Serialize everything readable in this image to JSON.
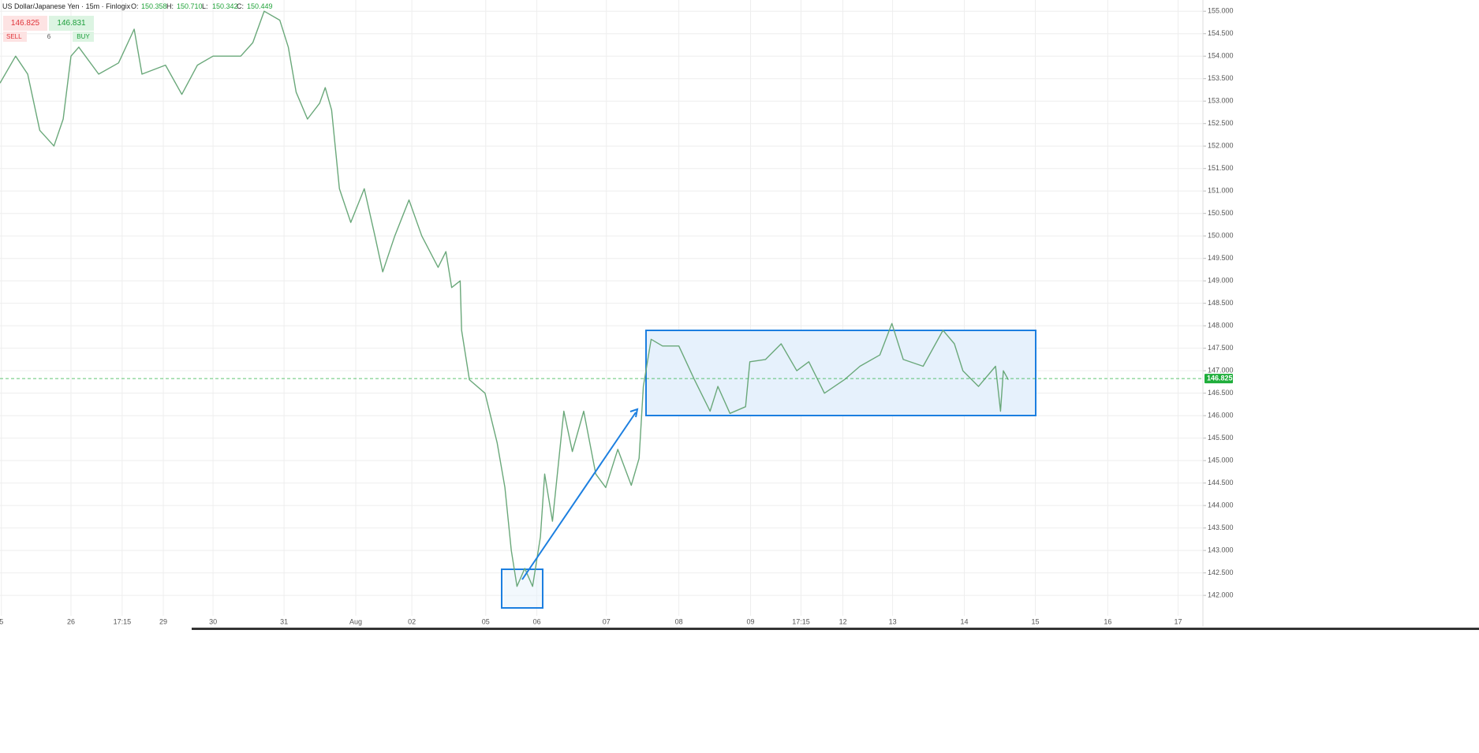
{
  "chart_data": {
    "type": "line",
    "title": "US Dollar/Japanese Yen · 15m · Finlogix",
    "ohlc": [
      {
        "label": "O:",
        "value": "150.358"
      },
      {
        "label": "H:",
        "value": "150.710"
      },
      {
        "label": "L:",
        "value": "150.342"
      },
      {
        "label": "C:",
        "value": "150.449"
      }
    ],
    "trade": {
      "sell_price": "146.825",
      "buy_price": "146.831",
      "sell_label": "SELL",
      "buy_label": "BUY",
      "spread": "6"
    },
    "last": {
      "value": 146.825,
      "label": "146.825",
      "color": "#1fae3b"
    },
    "grid": true,
    "xlim": [
      0,
      16.94
    ],
    "ylim": [
      141.3,
      155.25
    ],
    "xticks": [
      {
        "value": 0.02,
        "label": "5"
      },
      {
        "value": 1.0,
        "label": "26"
      },
      {
        "value": 1.72,
        "label": "17:15"
      },
      {
        "value": 2.3,
        "label": "29"
      },
      {
        "value": 3.0,
        "label": "30"
      },
      {
        "value": 4.0,
        "label": "31"
      },
      {
        "value": 5.01,
        "label": "Aug"
      },
      {
        "value": 5.8,
        "label": "02"
      },
      {
        "value": 6.84,
        "label": "05"
      },
      {
        "value": 7.56,
        "label": "06"
      },
      {
        "value": 8.54,
        "label": "07"
      },
      {
        "value": 9.56,
        "label": "08"
      },
      {
        "value": 10.57,
        "label": "09"
      },
      {
        "value": 11.28,
        "label": "17:15"
      },
      {
        "value": 11.87,
        "label": "12"
      },
      {
        "value": 12.57,
        "label": "13"
      },
      {
        "value": 13.58,
        "label": "14"
      },
      {
        "value": 14.58,
        "label": "15"
      },
      {
        "value": 15.6,
        "label": "16"
      },
      {
        "value": 16.59,
        "label": "17"
      }
    ],
    "yticks": [
      {
        "value": 142.0,
        "label": "142.000"
      },
      {
        "value": 142.5,
        "label": "142.500"
      },
      {
        "value": 143.0,
        "label": "143.000"
      },
      {
        "value": 143.5,
        "label": "143.500"
      },
      {
        "value": 144.0,
        "label": "144.000"
      },
      {
        "value": 144.5,
        "label": "144.500"
      },
      {
        "value": 145.0,
        "label": "145.000"
      },
      {
        "value": 145.5,
        "label": "145.500"
      },
      {
        "value": 146.0,
        "label": "146.000"
      },
      {
        "value": 146.5,
        "label": "146.500"
      },
      {
        "value": 147.0,
        "label": "147.000"
      },
      {
        "value": 147.5,
        "label": "147.500"
      },
      {
        "value": 148.0,
        "label": "148.000"
      },
      {
        "value": 148.5,
        "label": "148.500"
      },
      {
        "value": 149.0,
        "label": "149.000"
      },
      {
        "value": 149.5,
        "label": "149.500"
      },
      {
        "value": 150.0,
        "label": "150.000"
      },
      {
        "value": 150.5,
        "label": "150.500"
      },
      {
        "value": 151.0,
        "label": "151.000"
      },
      {
        "value": 151.5,
        "label": "151.500"
      },
      {
        "value": 152.0,
        "label": "152.000"
      },
      {
        "value": 152.5,
        "label": "152.500"
      },
      {
        "value": 153.0,
        "label": "153.000"
      },
      {
        "value": 153.5,
        "label": "153.500"
      },
      {
        "value": 154.0,
        "label": "154.000"
      },
      {
        "value": 154.5,
        "label": "154.500"
      },
      {
        "value": 155.0,
        "label": "155.000"
      }
    ],
    "x": [
      0,
      0.22,
      0.39,
      0.56,
      0.76,
      0.89,
      1.0,
      1.11,
      1.39,
      1.67,
      1.89,
      2.0,
      2.33,
      2.56,
      2.78,
      3.0,
      3.39,
      3.56,
      3.72,
      3.94,
      4.06,
      4.17,
      4.33,
      4.5,
      4.58,
      4.67,
      4.78,
      4.94,
      5.13,
      5.28,
      5.39,
      5.56,
      5.76,
      5.94,
      6.17,
      6.28,
      6.36,
      6.48,
      6.5,
      6.61,
      6.83,
      7.0,
      7.11,
      7.2,
      7.28,
      7.39,
      7.5,
      7.61,
      7.67,
      7.78,
      7.94,
      8.06,
      8.22,
      8.39,
      8.53,
      8.7,
      8.89,
      9.0,
      9.06,
      9.17,
      9.33,
      9.56,
      9.78,
      10.0,
      10.11,
      10.28,
      10.5,
      10.56,
      10.78,
      11.0,
      11.22,
      11.39,
      11.61,
      11.89,
      12.11,
      12.39,
      12.56,
      12.72,
      13.0,
      13.28,
      13.44,
      13.56,
      13.78,
      14.02,
      14.09,
      14.13,
      14.2
    ],
    "series": [
      {
        "color": "#6aa87a",
        "values": [
          153.4,
          154.0,
          153.6,
          152.35,
          152.0,
          152.6,
          154.0,
          154.2,
          153.6,
          153.85,
          154.6,
          153.6,
          153.8,
          153.15,
          153.8,
          154.0,
          154.0,
          154.3,
          155.0,
          154.8,
          154.2,
          153.2,
          152.6,
          152.95,
          153.3,
          152.8,
          151.05,
          150.3,
          151.05,
          150.0,
          149.2,
          150.0,
          150.8,
          150.0,
          149.3,
          149.65,
          148.85,
          149.0,
          147.9,
          146.8,
          146.5,
          145.4,
          144.4,
          143.0,
          142.2,
          142.6,
          142.2,
          143.3,
          144.7,
          143.65,
          146.1,
          145.2,
          146.1,
          144.7,
          144.4,
          145.25,
          144.45,
          145.05,
          146.65,
          147.7,
          147.55,
          147.55,
          146.8,
          146.1,
          146.65,
          146.05,
          146.2,
          147.2,
          147.25,
          147.6,
          147.0,
          147.2,
          146.5,
          146.8,
          147.1,
          147.35,
          148.05,
          147.25,
          147.1,
          147.9,
          147.6,
          147.0,
          146.65,
          147.1,
          146.1,
          147.0,
          146.8
        ]
      }
    ]
  }
}
